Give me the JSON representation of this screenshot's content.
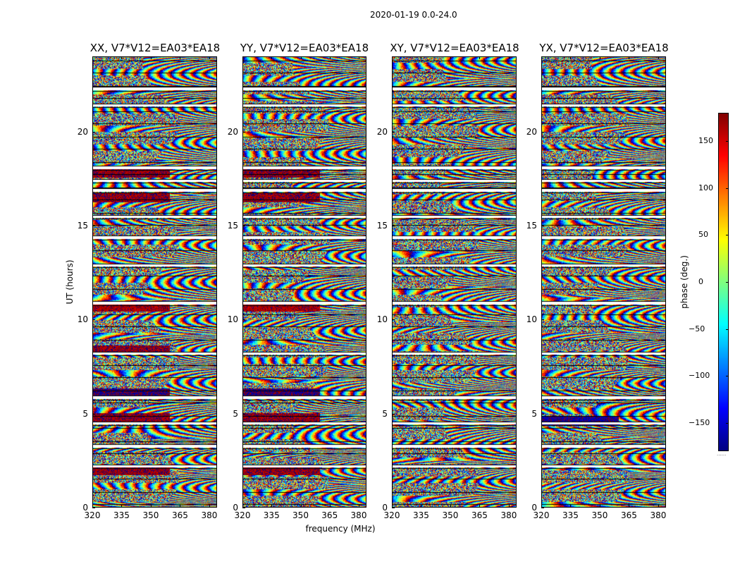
{
  "chart_data": [
    {
      "type": "heatmap",
      "suptitle": "2020-01-19 0.0-24.0",
      "title": "XX, V7*V12=EA03*EA18",
      "xlabel": "frequency (MHz)",
      "ylabel": "UT (hours)",
      "xlim": [
        320,
        384
      ],
      "ylim": [
        0,
        24
      ],
      "xticks": [
        "320",
        "335",
        "350",
        "365",
        "380"
      ],
      "yticks": [
        "0",
        "5",
        "10",
        "15",
        "20"
      ],
      "value_range_deg": [
        -180,
        180
      ],
      "flagged_hours": [
        2.2,
        3.3,
        4.5,
        5.9,
        8.2,
        10.9,
        12.9,
        14.4,
        15.5,
        16.9,
        17.4,
        18.1,
        21.4,
        22.3
      ],
      "coherent_phase_hours": [
        2.0,
        4.8,
        6.1,
        8.4,
        10.7,
        16.5,
        17.8
      ],
      "coherent_phase_values_deg": [
        170,
        170,
        -175,
        170,
        165,
        170,
        170
      ]
    },
    {
      "type": "heatmap",
      "title": "YY, V7*V12=EA03*EA18",
      "xlabel": "frequency (MHz)",
      "xlim": [
        320,
        384
      ],
      "ylim": [
        0,
        24
      ],
      "xticks": [
        "320",
        "335",
        "350",
        "365",
        "380"
      ],
      "yticks": [
        "0",
        "5",
        "10",
        "15",
        "20"
      ],
      "value_range_deg": [
        -180,
        180
      ],
      "flagged_hours": [
        2.2,
        3.3,
        4.5,
        5.9,
        8.2,
        10.9,
        12.9,
        14.4,
        15.5,
        16.9,
        17.4,
        18.1,
        21.4,
        22.3
      ],
      "coherent_phase_hours": [
        2.0,
        4.8,
        6.1,
        10.7,
        16.5,
        17.8
      ],
      "coherent_phase_values_deg": [
        170,
        170,
        -175,
        165,
        170,
        170
      ]
    },
    {
      "type": "heatmap",
      "title": "XY, V7*V12=EA03*EA18",
      "xlabel": "frequency (MHz)",
      "xlim": [
        320,
        384
      ],
      "ylim": [
        0,
        24
      ],
      "xticks": [
        "320",
        "335",
        "350",
        "365",
        "380"
      ],
      "yticks": [
        "0",
        "5",
        "10",
        "15",
        "20"
      ],
      "value_range_deg": [
        -180,
        180
      ],
      "flagged_hours": [
        2.2,
        3.3,
        4.5,
        5.9,
        8.2,
        10.9,
        12.9,
        14.4,
        15.5,
        16.9,
        17.4,
        18.1,
        21.4,
        22.3
      ],
      "coherent_phase_hours": [],
      "coherent_phase_values_deg": []
    },
    {
      "type": "heatmap",
      "title": "YX, V7*V12=EA03*EA18",
      "xlabel": "frequency (MHz)",
      "xlim": [
        320,
        384
      ],
      "ylim": [
        0,
        24
      ],
      "xticks": [
        "320",
        "335",
        "350",
        "365",
        "380"
      ],
      "yticks": [
        "0",
        "5",
        "10",
        "15",
        "20"
      ],
      "value_range_deg": [
        -180,
        180
      ],
      "flagged_hours": [
        2.2,
        3.3,
        4.5,
        5.9,
        8.2,
        10.9,
        12.9,
        14.4,
        15.5,
        16.9,
        17.4,
        18.1,
        21.4,
        22.3
      ],
      "coherent_phase_hours": [
        4.6
      ],
      "coherent_phase_values_deg": [
        -170
      ]
    }
  ],
  "colorbar": {
    "label": "phase (deg.)",
    "range": [
      -180,
      180
    ],
    "ticks": [
      {
        "label": "150",
        "value": 150
      },
      {
        "label": "100",
        "value": 100
      },
      {
        "label": "50",
        "value": 50
      },
      {
        "label": "0",
        "value": 0
      },
      {
        "label": "−50",
        "value": -50
      },
      {
        "label": "−100",
        "value": -100
      },
      {
        "label": "−150",
        "value": -150
      }
    ],
    "colormap": "jet",
    "note": "......"
  }
}
